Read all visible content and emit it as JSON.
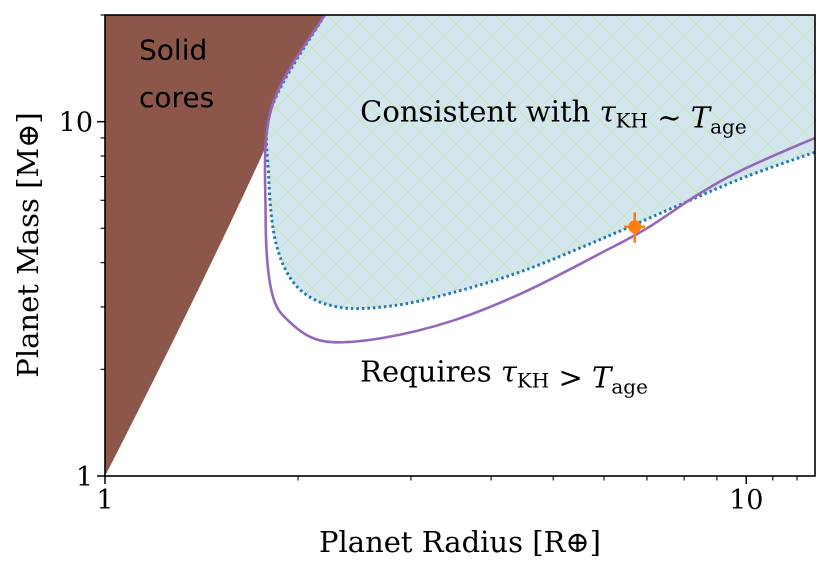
{
  "chart_data": {
    "type": "line",
    "xlabel": "Planet Radius [R⊕]",
    "ylabel": "Planet Mass [M⊕]",
    "xscale": "log",
    "yscale": "log",
    "xlim": [
      1,
      12.8
    ],
    "ylim": [
      1,
      20
    ],
    "xticks": [
      {
        "value": 1,
        "label": "1"
      },
      {
        "value": 10,
        "label": "10"
      }
    ],
    "yticks": [
      {
        "value": 1,
        "label": "1"
      },
      {
        "value": 10,
        "label": "10"
      }
    ],
    "grid": false,
    "regions": [
      {
        "name": "Solid cores",
        "color": "#8c564b",
        "boundary_x": [
          1.0,
          1.6,
          2.2
        ],
        "boundary_y": [
          1.0,
          4.6,
          20.0
        ]
      },
      {
        "name": "Consistent with τKH ~ Tage",
        "color": "#d3e5ee",
        "hatch_color": "#cfe9c2",
        "boundary_color": "#1f77b4",
        "boundary_x": [
          2.2,
          1.82,
          1.8,
          1.85,
          2.0,
          2.3,
          2.8,
          3.5,
          4.5,
          6.0,
          8.0,
          10.0,
          12.8
        ],
        "boundary_y": [
          20.0,
          11.0,
          7.0,
          4.5,
          3.4,
          3.0,
          3.02,
          3.3,
          3.8,
          4.7,
          5.9,
          7.0,
          8.2
        ]
      }
    ],
    "series": [
      {
        "color": "#9467bd",
        "x": [
          2.2,
          1.82,
          1.78,
          1.82,
          1.95,
          2.2,
          2.7,
          3.5,
          4.5,
          6.0,
          7.0,
          8.5,
          10.0,
          12.8
        ],
        "y": [
          20.0,
          11.0,
          5.5,
          3.3,
          2.7,
          2.4,
          2.45,
          2.75,
          3.3,
          4.3,
          5.0,
          6.3,
          7.4,
          9.0
        ]
      }
    ],
    "point": {
      "x": 6.7,
      "y": 5.05,
      "xerr": 0.25,
      "yerr": 0.5,
      "color": "#ff7f0e"
    },
    "annotations": [
      {
        "text": "Solid",
        "x": 1.13,
        "y": 15.0
      },
      {
        "text": "cores",
        "x": 1.13,
        "y": 11.0
      },
      {
        "text": "Consistent with τKH ∼ Tage",
        "x": 2.5,
        "y": 10.0
      },
      {
        "text": "Requires τKH > Tage",
        "x": 2.5,
        "y": 1.85
      }
    ]
  }
}
